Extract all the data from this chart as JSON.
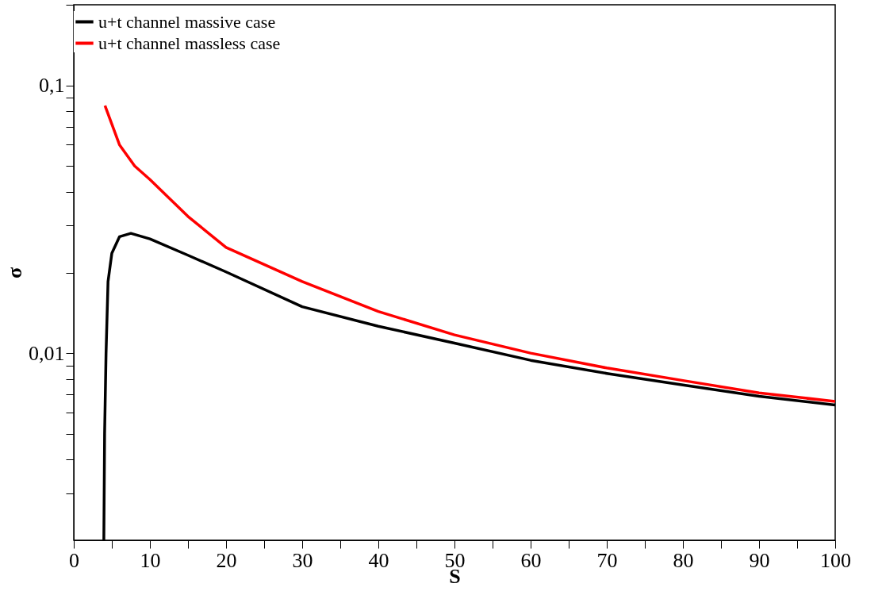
{
  "chart_data": {
    "type": "line",
    "xlabel": "S",
    "ylabel": "σ",
    "log": "y",
    "xlim": [
      0,
      100
    ],
    "ylim": [
      0.002,
      0.2
    ],
    "xticks": [
      0,
      {
        "value": 5,
        "label": null
      },
      10,
      {
        "value": 15,
        "label": null
      },
      20,
      {
        "value": 25,
        "label": null
      },
      30,
      {
        "value": 35,
        "label": null
      },
      40,
      {
        "value": 45,
        "label": null
      },
      50,
      {
        "value": 55,
        "label": null
      },
      60,
      {
        "value": 65,
        "label": null
      },
      70,
      {
        "value": 75,
        "label": null
      },
      80,
      {
        "value": 85,
        "label": null
      },
      90,
      {
        "value": 95,
        "label": null
      },
      100
    ],
    "yticks": [
      {
        "value": 0.003,
        "label": null
      },
      {
        "value": 0.004,
        "label": null
      },
      {
        "value": 0.005,
        "label": null
      },
      {
        "value": 0.006,
        "label": null
      },
      {
        "value": 0.007,
        "label": null
      },
      {
        "value": 0.008,
        "label": null
      },
      {
        "value": 0.009,
        "label": null
      },
      {
        "value": 0.01,
        "label": "0,01"
      },
      {
        "value": 0.02,
        "label": null
      },
      {
        "value": 0.03,
        "label": null
      },
      {
        "value": 0.04,
        "label": null
      },
      {
        "value": 0.05,
        "label": null
      },
      {
        "value": 0.06,
        "label": null
      },
      {
        "value": 0.07,
        "label": null
      },
      {
        "value": 0.08,
        "label": null
      },
      {
        "value": 0.09,
        "label": null
      },
      {
        "value": 0.1,
        "label": "0,1"
      },
      {
        "value": 0.2,
        "label": null
      }
    ],
    "grid": false,
    "legend": "top",
    "marker": "none",
    "line_style": "solid",
    "series": [
      {
        "name": "u+t channel massive case",
        "color": "#000000",
        "x": [
          3.95,
          4.05,
          4.24,
          4.5,
          5,
          6,
          7.5,
          10,
          15,
          20,
          30,
          40,
          50,
          60,
          70,
          80,
          90,
          100
        ],
        "values": [
          0.002,
          0.005,
          0.01,
          0.0185,
          0.0236,
          0.0272,
          0.028,
          0.0267,
          0.0232,
          0.0201,
          0.0149,
          0.0126,
          0.0109,
          0.0094,
          0.0084,
          0.0076,
          0.0069,
          0.0064
        ]
      },
      {
        "name": " u+t channel massless case",
        "color": "#ff0000",
        "x": [
          4.1,
          6,
          8,
          10,
          15,
          20,
          30,
          40,
          50,
          60,
          70,
          80,
          90,
          100
        ],
        "values": [
          0.084,
          0.06,
          0.05,
          0.0445,
          0.0324,
          0.0248,
          0.0185,
          0.0143,
          0.0117,
          0.01,
          0.0088,
          0.0079,
          0.0071,
          0.0066
        ]
      }
    ]
  }
}
